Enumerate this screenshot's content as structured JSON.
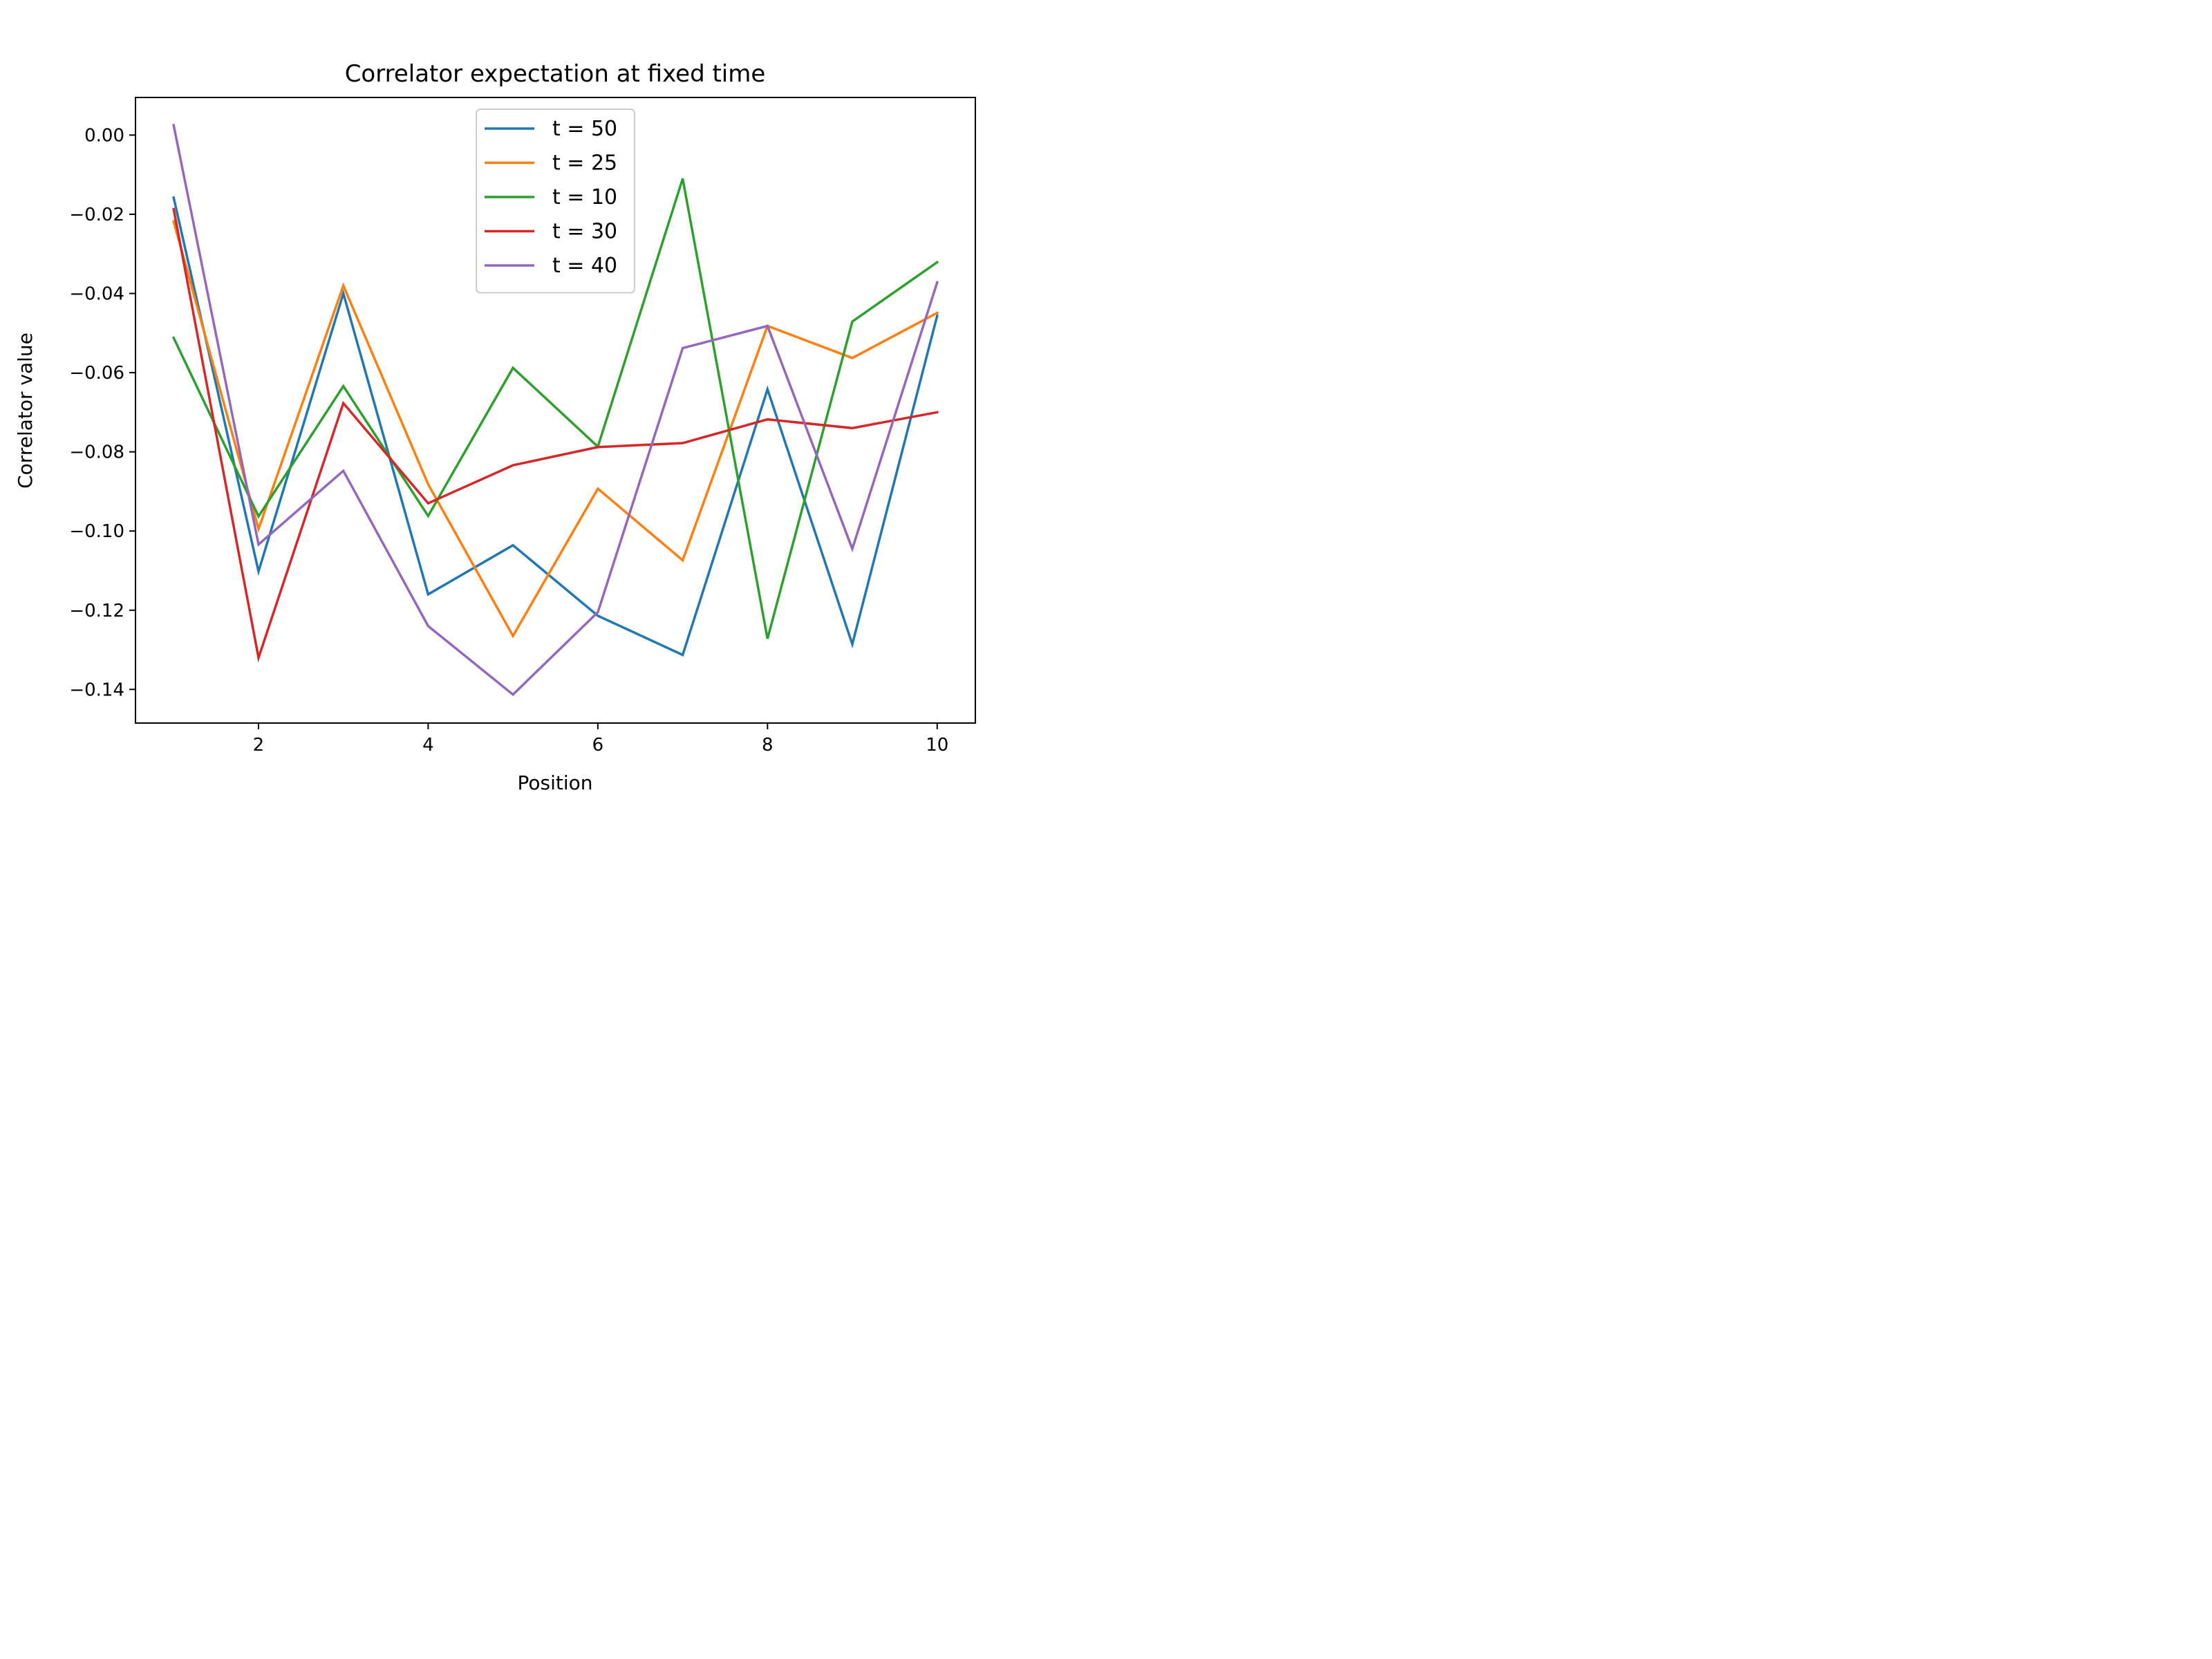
{
  "chart_data": {
    "type": "line",
    "title": "Correlator expectation at fixed time",
    "xlabel": "Position",
    "ylabel": "Correlator value",
    "xlim": [
      0.55,
      10.45
    ],
    "ylim": [
      -0.1485,
      0.0095
    ],
    "xticks": [
      {
        "value": 2,
        "label": "2"
      },
      {
        "value": 4,
        "label": "4"
      },
      {
        "value": 6,
        "label": "6"
      },
      {
        "value": 8,
        "label": "8"
      },
      {
        "value": 10,
        "label": "10"
      }
    ],
    "yticks": [
      {
        "value": 0.0,
        "label": "0.00"
      },
      {
        "value": -0.02,
        "label": "−0.02"
      },
      {
        "value": -0.04,
        "label": "−0.04"
      },
      {
        "value": -0.06,
        "label": "−0.06"
      },
      {
        "value": -0.08,
        "label": "−0.08"
      },
      {
        "value": -0.1,
        "label": "−0.10"
      },
      {
        "value": -0.12,
        "label": "−0.12"
      },
      {
        "value": -0.14,
        "label": "−0.14"
      }
    ],
    "grid": false,
    "legend_position": "upper center",
    "x": [
      1,
      2,
      3,
      4,
      5,
      6,
      7,
      8,
      9,
      10
    ],
    "series": [
      {
        "name": "t = 50",
        "color": "#1f77b4",
        "values": [
          -0.0158,
          -0.1102,
          -0.04,
          -0.116,
          -0.1036,
          -0.1214,
          -0.1313,
          -0.0642,
          -0.1286,
          -0.0456
        ]
      },
      {
        "name": "t = 25",
        "color": "#ff7f0e",
        "values": [
          -0.0218,
          -0.0995,
          -0.038,
          -0.0882,
          -0.1265,
          -0.0893,
          -0.1074,
          -0.0482,
          -0.0563,
          -0.0449
        ]
      },
      {
        "name": "t = 10",
        "color": "#2ca02c",
        "values": [
          -0.0512,
          -0.0963,
          -0.0634,
          -0.0962,
          -0.0588,
          -0.0787,
          -0.011,
          -0.1272,
          -0.0471,
          -0.0321
        ]
      },
      {
        "name": "t = 30",
        "color": "#d62728",
        "values": [
          -0.0187,
          -0.132,
          -0.0677,
          -0.093,
          -0.0834,
          -0.0788,
          -0.0778,
          -0.0718,
          -0.074,
          -0.07
        ]
      },
      {
        "name": "t = 40",
        "color": "#9467bd",
        "values": [
          0.0025,
          -0.1034,
          -0.0848,
          -0.124,
          -0.1413,
          -0.1205,
          -0.0538,
          -0.0482,
          -0.1045,
          -0.0372
        ]
      }
    ]
  }
}
